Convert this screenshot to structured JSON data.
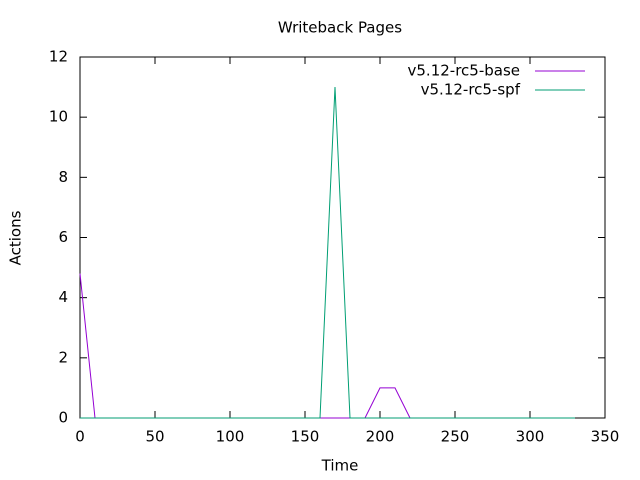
{
  "chart_data": {
    "type": "line",
    "title": "Writeback Pages",
    "x_label": "Time",
    "y_label": "Actions",
    "x": [
      0,
      10,
      20,
      30,
      40,
      50,
      60,
      70,
      80,
      90,
      100,
      110,
      120,
      130,
      140,
      150,
      160,
      170,
      180,
      190,
      200,
      210,
      220,
      230,
      240,
      250,
      260,
      270,
      280,
      290,
      300,
      310,
      320,
      330
    ],
    "series": [
      {
        "name": "v5.12-rc5-base",
        "color": "#9400d3",
        "values": [
          4.8,
          0,
          0,
          0,
          0,
          0,
          0,
          0,
          0,
          0,
          0,
          0,
          0,
          0,
          0,
          0,
          0,
          0,
          0,
          0,
          1,
          1,
          0,
          0,
          0,
          0,
          0,
          0,
          0,
          0,
          0,
          0,
          0,
          0
        ]
      },
      {
        "name": "v5.12-rc5-spf",
        "color": "#009e73",
        "values": [
          0,
          0,
          0,
          0,
          0,
          0,
          0,
          0,
          0,
          0,
          0,
          0,
          0,
          0,
          0,
          0,
          0,
          11,
          0,
          0,
          0,
          0,
          0,
          0,
          0,
          0,
          0,
          0,
          0,
          0,
          0,
          0,
          0,
          0
        ]
      }
    ],
    "xlim": [
      0,
      350
    ],
    "xticks": [
      0,
      50,
      100,
      150,
      200,
      250,
      300,
      350
    ],
    "ylim": [
      0,
      12
    ],
    "yticks": [
      0,
      2,
      4,
      6,
      8,
      10,
      12
    ],
    "legend": "top-right"
  }
}
